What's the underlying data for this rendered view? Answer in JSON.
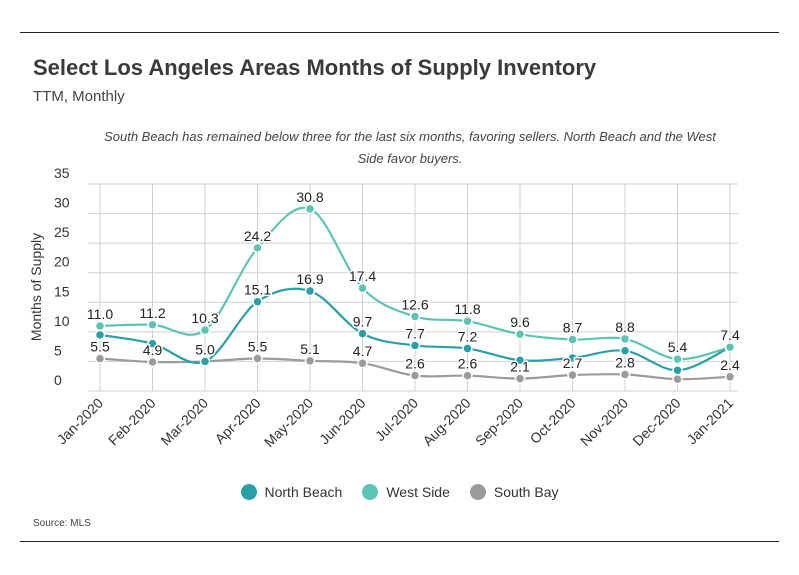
{
  "header": {
    "title": "Select Los Angeles Areas Months of Supply Inventory",
    "subtitle": "TTM, Monthly",
    "note": "South Beach has remained below three for the last six months, favoring sellers. North Beach and the West Side favor buyers."
  },
  "footer": {
    "source": "Source:  MLS"
  },
  "colors": {
    "north_beach": "#2a9fa8",
    "west_side": "#5cc4b5",
    "south_bay": "#9b9b9b",
    "grid": "#cfcfcf"
  },
  "chart_data": {
    "type": "line",
    "title": "Select Los Angeles Areas Months of Supply Inventory",
    "subtitle": "TTM, Monthly",
    "xlabel": "",
    "ylabel": "Months of Supply",
    "ylim": [
      0,
      35
    ],
    "yticks": [
      0,
      5,
      10,
      15,
      20,
      25,
      30,
      35
    ],
    "grid": true,
    "legend": "bottom-center",
    "categories": [
      "Jan-2020",
      "Feb-2020",
      "Mar-2020",
      "Apr-2020",
      "May-2020",
      "Jun-2020",
      "Jul-2020",
      "Aug-2020",
      "Sep-2020",
      "Oct-2020",
      "Nov-2020",
      "Dec-2020",
      "Jan-2021"
    ],
    "series": [
      {
        "name": "North Beach",
        "color": "#2a9fa8",
        "values": [
          9.5,
          8.0,
          5.0,
          15.1,
          16.9,
          9.7,
          7.7,
          7.2,
          5.2,
          5.6,
          6.8,
          3.5,
          7.4
        ],
        "labels": [
          "",
          "",
          "",
          "15.1",
          "16.9",
          "9.7",
          "7.7",
          "7.2",
          "",
          "",
          "",
          "",
          ""
        ]
      },
      {
        "name": "West Side",
        "color": "#5cc4b5",
        "values": [
          11.0,
          11.2,
          10.3,
          24.2,
          30.8,
          17.4,
          12.6,
          11.8,
          9.6,
          8.7,
          8.8,
          5.4,
          7.4
        ],
        "labels": [
          "11.0",
          "11.2",
          "10.3",
          "24.2",
          "30.8",
          "17.4",
          "12.6",
          "11.8",
          "9.6",
          "8.7",
          "8.8",
          "5.4",
          "7.4"
        ]
      },
      {
        "name": "South Bay",
        "color": "#9b9b9b",
        "values": [
          5.5,
          4.9,
          5.0,
          5.5,
          5.1,
          4.7,
          2.6,
          2.6,
          2.1,
          2.7,
          2.8,
          2.0,
          2.4
        ],
        "labels": [
          "5.5",
          "4.9",
          "5.0",
          "5.5",
          "5.1",
          "4.7",
          "2.6",
          "2.6",
          "2.1",
          "2.7",
          "2.8",
          "",
          "2.4"
        ]
      }
    ]
  }
}
